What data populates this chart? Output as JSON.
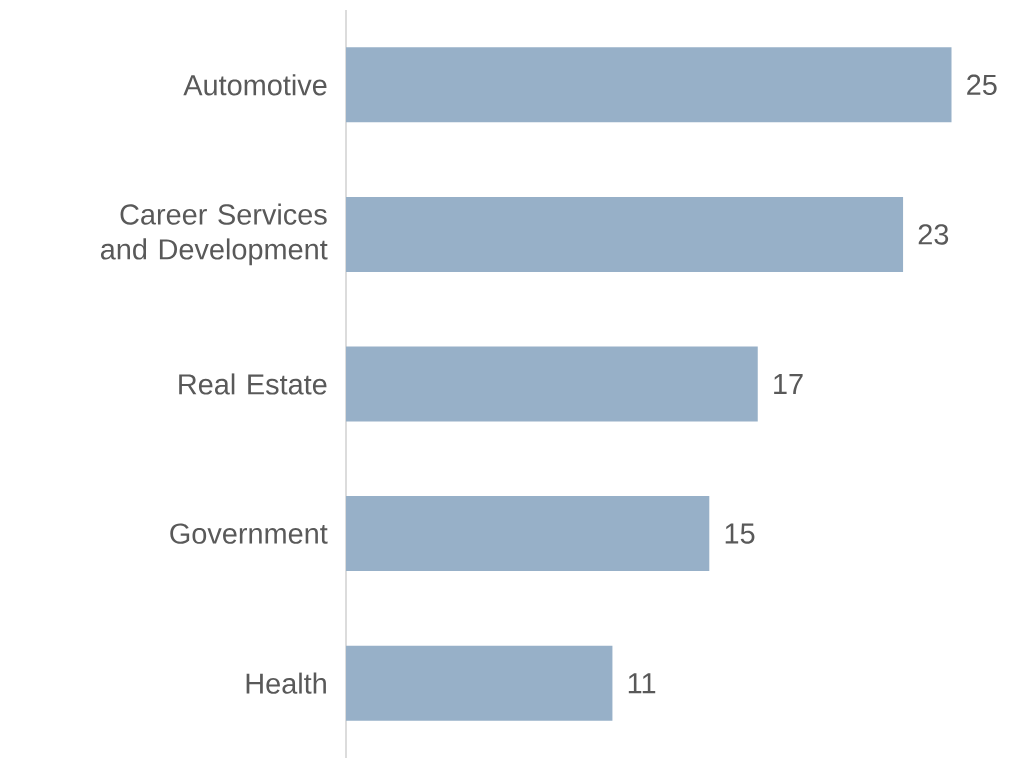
{
  "chart_data": {
    "type": "bar",
    "orientation": "horizontal",
    "categories": [
      "Automotive",
      "Career Services and Development",
      "Real Estate",
      "Government",
      "Health"
    ],
    "values": [
      25,
      23,
      17,
      15,
      11
    ],
    "color": "#97b0c8",
    "data_labels": true
  }
}
